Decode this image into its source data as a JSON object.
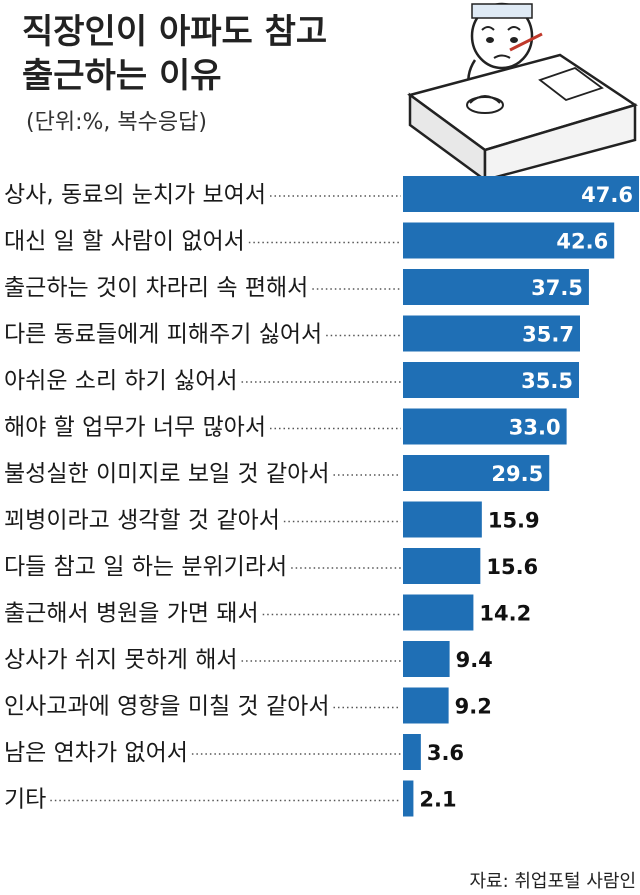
{
  "title_lines": [
    "직장인이 아파도 참고",
    "출근하는 이유"
  ],
  "subtitle": "(단위:%, 복수응답)",
  "source": "자료: 취업포털 사람인",
  "colors": {
    "bar": "#1f6fb5",
    "bar_label_inside": "#ffffff",
    "bar_label_outside": "#111111",
    "leader": "#555555"
  },
  "chart_data": {
    "type": "bar",
    "orientation": "horizontal",
    "categories": [
      "상사, 동료의 눈치가 보여서",
      "대신 일 할 사람이 없어서",
      "출근하는 것이 차라리 속 편해서",
      "다른 동료들에게 피해주기 싫어서",
      "아쉬운 소리 하기 싫어서",
      "해야 할 업무가 너무 많아서",
      "불성실한 이미지로 보일 것 같아서",
      "꾀병이라고 생각할 것 같아서",
      "다들 참고 일 하는 분위기라서",
      "출근해서 병원을 가면 돼서",
      "상사가 쉬지 못하게 해서",
      "인사고과에 영향을 미칠 것 같아서",
      "남은 연차가 없어서",
      "기타"
    ],
    "values": [
      47.6,
      42.6,
      37.5,
      35.7,
      35.5,
      33.0,
      29.5,
      15.9,
      15.6,
      14.2,
      9.4,
      9.2,
      3.6,
      2.1
    ],
    "value_labels": [
      "47.6",
      "42.6",
      "37.5",
      "35.7",
      "35.5",
      "33.0",
      "29.5",
      "15.9",
      "15.6",
      "14.2",
      "9.4",
      "9.2",
      "3.6",
      "2.1"
    ],
    "unit": "%",
    "xlim": [
      0,
      47.6
    ]
  }
}
